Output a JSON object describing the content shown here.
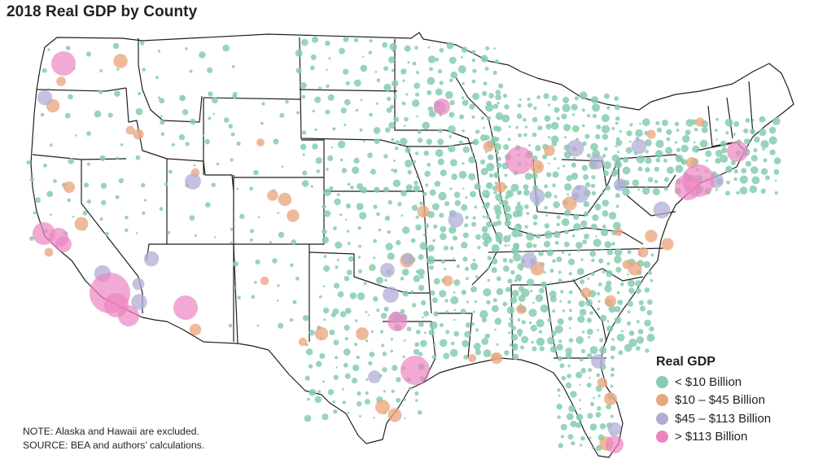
{
  "title": "2018 Real GDP by County",
  "legend": {
    "title": "Real GDP",
    "items": [
      {
        "label": "< $10 Billion",
        "color": "#86cdb0",
        "tier": "small"
      },
      {
        "label": "$10 – $45 Billion",
        "color": "#eba67f",
        "tier": "medium"
      },
      {
        "label": "$45 – $113 Billion",
        "color": "#b1acd6",
        "tier": "large"
      },
      {
        "label": "> $113 Billion",
        "color": "#ec84c1",
        "tier": "xlarge"
      }
    ]
  },
  "notes": {
    "note": "NOTE: Alaska and Hawaii are excluded.",
    "source": "SOURCE: BEA and authors’ calculations."
  },
  "map": {
    "type": "proportional-symbol-map",
    "region": "Contiguous United States",
    "unit": "county",
    "border_color": "#1f1f1f"
  }
}
